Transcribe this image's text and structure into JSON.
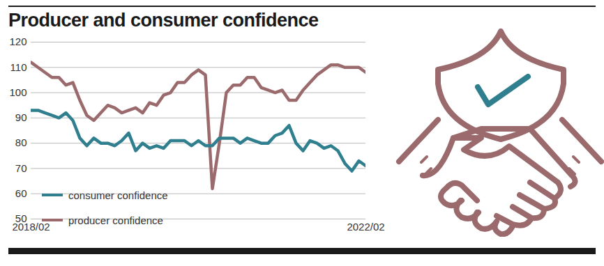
{
  "chart_data": {
    "type": "line",
    "title": "Producer and consumer confidence",
    "categories": [
      "2018/02",
      null,
      null,
      null,
      null,
      null,
      null,
      null,
      null,
      null,
      null,
      null,
      null,
      null,
      null,
      null,
      null,
      null,
      null,
      null,
      null,
      null,
      null,
      null,
      null,
      null,
      null,
      null,
      null,
      null,
      null,
      null,
      null,
      null,
      null,
      null,
      null,
      null,
      null,
      null,
      null,
      null,
      null,
      null,
      null,
      null,
      null,
      null,
      "2022/02"
    ],
    "series": [
      {
        "name": "consumer confidence",
        "color": "#2f7f8e",
        "values": [
          93,
          93,
          92,
          91,
          90,
          92,
          89,
          82,
          79,
          82,
          80,
          80,
          79,
          81,
          84,
          77,
          80,
          78,
          79,
          78,
          81,
          81,
          81,
          79,
          81,
          79,
          79,
          82,
          82,
          82,
          80,
          82,
          81,
          80,
          80,
          83,
          84,
          87,
          80,
          77,
          81,
          80,
          78,
          79,
          77,
          72,
          69,
          73,
          71
        ]
      },
      {
        "name": "producer confidence",
        "color": "#9b6a6c",
        "values": [
          112,
          110,
          108,
          106,
          106,
          103,
          104,
          97,
          91,
          89,
          92,
          95,
          94,
          92,
          93,
          94,
          92,
          96,
          95,
          99,
          100,
          104,
          104,
          107,
          109,
          107,
          62,
          80,
          100,
          103,
          103,
          106,
          106,
          102,
          101,
          100,
          101,
          97,
          97,
          101,
          104,
          107,
          109,
          111,
          111,
          110,
          110,
          110,
          108
        ]
      }
    ],
    "ylim": [
      50,
      120
    ],
    "yticks": [
      50,
      60,
      70,
      80,
      90,
      100,
      110,
      120
    ],
    "grid": true,
    "legend": "bottom-left"
  }
}
